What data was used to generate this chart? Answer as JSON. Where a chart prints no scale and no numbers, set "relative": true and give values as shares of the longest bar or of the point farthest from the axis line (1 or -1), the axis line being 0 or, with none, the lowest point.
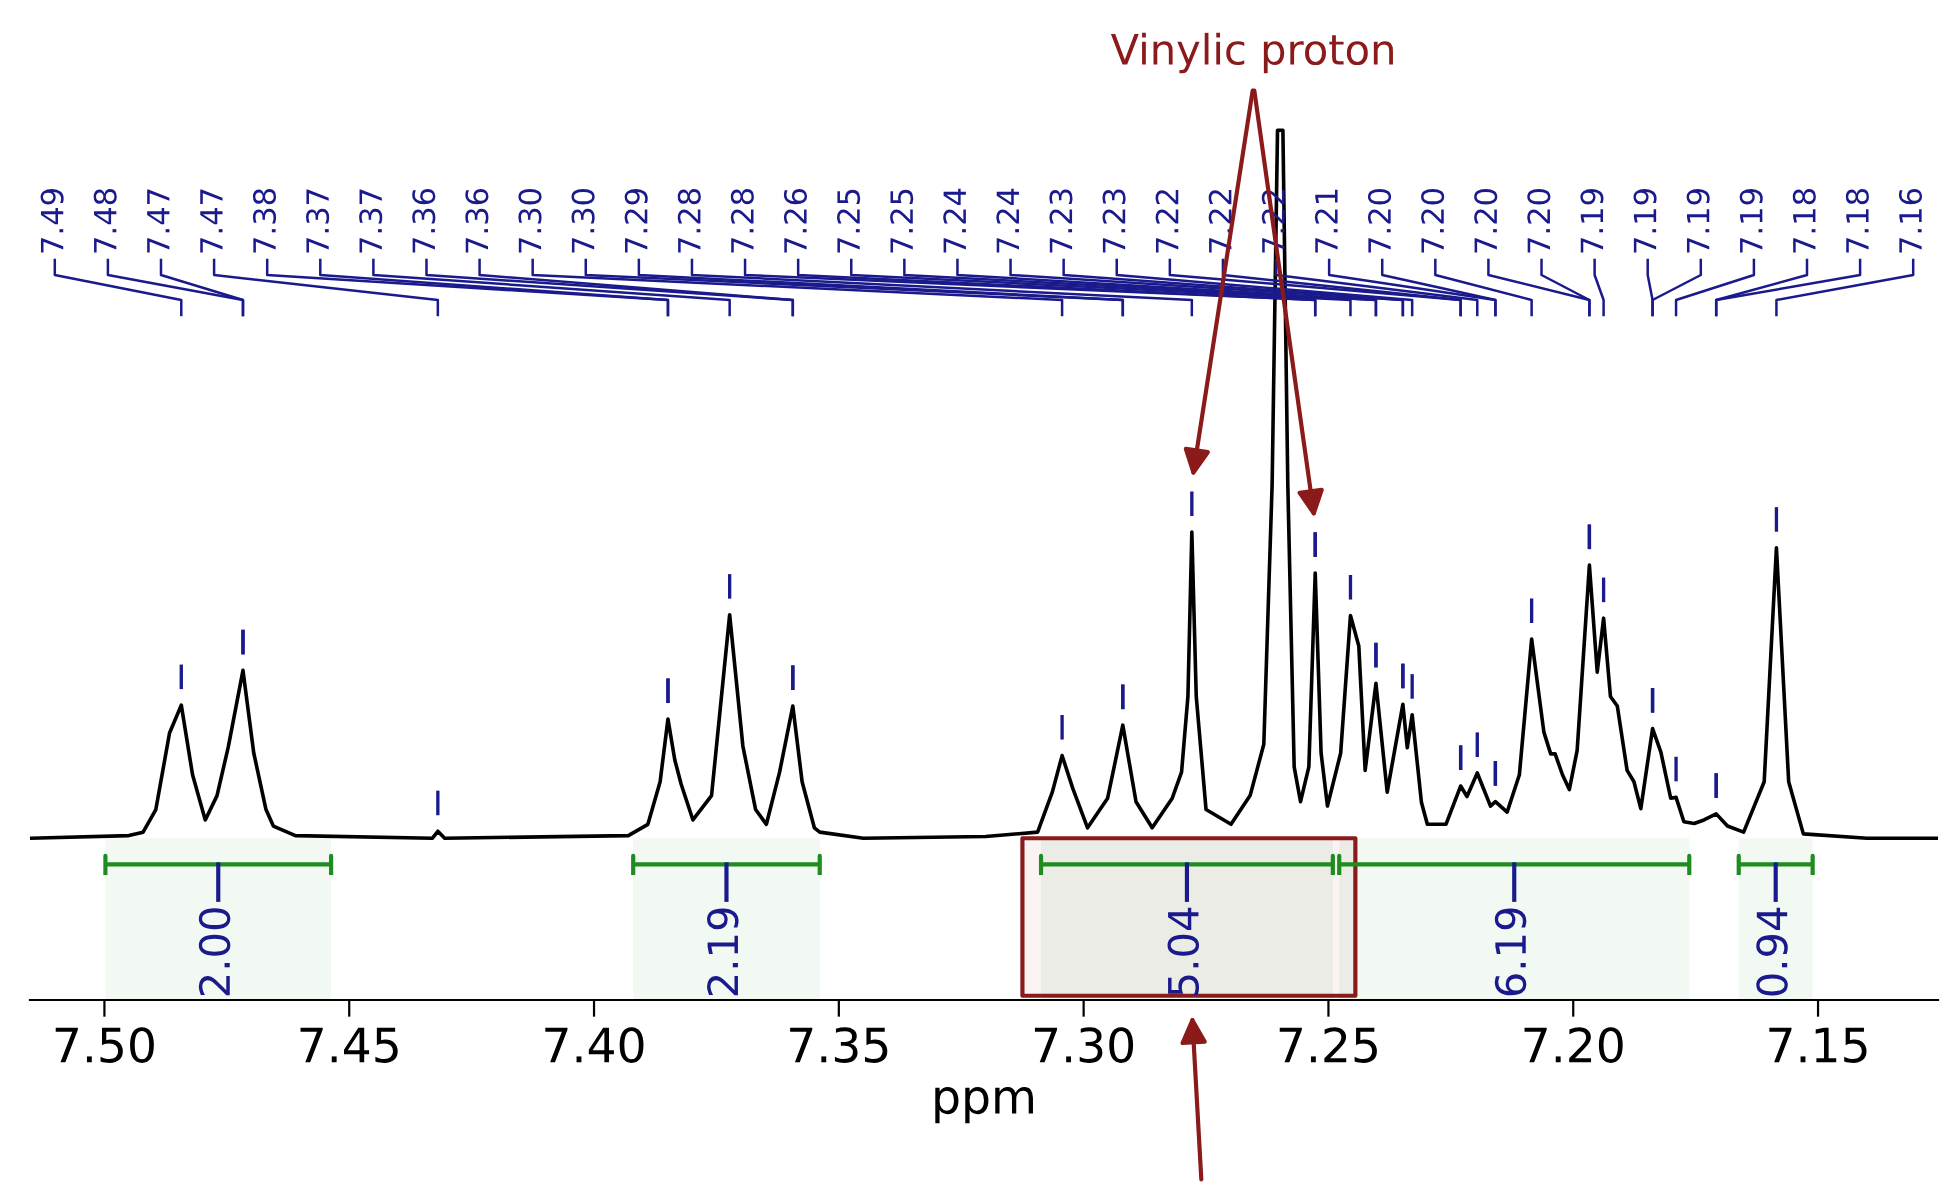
{
  "chart_data": {
    "type": "line",
    "relative": true,
    "xlabel": "ppm",
    "xlim": [
      7.5152,
      7.1255
    ],
    "xticks": [
      {
        "value": 7.5,
        "label": "7.50"
      },
      {
        "value": 7.45,
        "label": "7.45"
      },
      {
        "value": 7.4,
        "label": "7.40"
      },
      {
        "value": 7.35,
        "label": "7.35"
      },
      {
        "value": 7.3,
        "label": "7.30"
      },
      {
        "value": 7.25,
        "label": "7.25"
      },
      {
        "value": 7.2,
        "label": "7.20"
      },
      {
        "value": 7.15,
        "label": "7.15"
      }
    ],
    "tick_labels": "x",
    "grid": false,
    "legend": false,
    "marker": "none",
    "line_style": "solid",
    "series": [
      {
        "color": "#000000",
        "x": [
          7.515,
          7.495,
          7.4921,
          7.4895,
          7.4867,
          7.4843,
          7.482,
          7.4794,
          7.477,
          7.4747,
          7.4717,
          7.4695,
          7.467,
          7.4655,
          7.461,
          7.433,
          7.4319,
          7.4305,
          7.393,
          7.389,
          7.3865,
          7.3849,
          7.3835,
          7.3822,
          7.3798,
          7.376,
          7.3723,
          7.3696,
          7.367,
          7.3648,
          7.3621,
          7.3594,
          7.3575,
          7.355,
          7.3539,
          7.345,
          7.32,
          7.3094,
          7.3064,
          7.3044,
          7.3022,
          7.2992,
          7.2951,
          7.292,
          7.2893,
          7.286,
          7.2819,
          7.28,
          7.2787,
          7.2779,
          7.277,
          7.275,
          7.2699,
          7.266,
          7.2632,
          7.2615,
          7.2604,
          7.2593,
          7.2583,
          7.257,
          7.2557,
          7.254,
          7.2527,
          7.2515,
          7.2502,
          7.2475,
          7.2455,
          7.2438,
          7.2425,
          7.2403,
          7.238,
          7.2348,
          7.2339,
          7.2329,
          7.231,
          7.2298,
          7.226,
          7.223,
          7.2217,
          7.2196,
          7.2169,
          7.2159,
          7.2135,
          7.211,
          7.2085,
          7.206,
          7.2046,
          7.2037,
          7.2022,
          7.2008,
          7.1992,
          7.1967,
          7.1951,
          7.1938,
          7.1924,
          7.191,
          7.189,
          7.1876,
          7.1862,
          7.1838,
          7.1821,
          7.1801,
          7.179,
          7.1774,
          7.1753,
          7.1733,
          7.1708,
          7.1685,
          7.1652,
          7.161,
          7.1585,
          7.156,
          7.153,
          7.14,
          7.1255
        ],
        "values": [
          0.186,
          0.189,
          0.193,
          0.219,
          0.307,
          0.339,
          0.259,
          0.207,
          0.235,
          0.291,
          0.379,
          0.284,
          0.219,
          0.2,
          0.189,
          0.186,
          0.194,
          0.186,
          0.189,
          0.202,
          0.251,
          0.323,
          0.276,
          0.248,
          0.207,
          0.235,
          0.443,
          0.292,
          0.219,
          0.202,
          0.262,
          0.338,
          0.251,
          0.198,
          0.193,
          0.186,
          0.188,
          0.193,
          0.239,
          0.281,
          0.243,
          0.198,
          0.232,
          0.316,
          0.228,
          0.198,
          0.232,
          0.262,
          0.349,
          0.538,
          0.349,
          0.219,
          0.202,
          0.235,
          0.294,
          0.593,
          1.0,
          1.0,
          0.593,
          0.268,
          0.228,
          0.268,
          0.491,
          0.284,
          0.223,
          0.284,
          0.442,
          0.407,
          0.264,
          0.364,
          0.239,
          0.34,
          0.29,
          0.328,
          0.227,
          0.202,
          0.202,
          0.246,
          0.234,
          0.261,
          0.223,
          0.228,
          0.216,
          0.259,
          0.415,
          0.308,
          0.283,
          0.283,
          0.259,
          0.242,
          0.287,
          0.5,
          0.377,
          0.439,
          0.349,
          0.338,
          0.264,
          0.251,
          0.22,
          0.312,
          0.285,
          0.232,
          0.233,
          0.205,
          0.203,
          0.207,
          0.214,
          0.2,
          0.193,
          0.251,
          0.52,
          0.251,
          0.191,
          0.186,
          0.186
        ]
      }
    ],
    "bands": [
      {
        "axis": "x",
        "from": 7.4998,
        "to": 7.4537,
        "label": "2.00",
        "color": "#1e8c1e"
      },
      {
        "axis": "x",
        "from": 7.392,
        "to": 7.3539,
        "label": "2.19",
        "color": "#1e8c1e"
      },
      {
        "axis": "x",
        "from": 7.3087,
        "to": 7.2491,
        "label": "5.04",
        "color": "#1e8c1e"
      },
      {
        "axis": "x",
        "from": 7.2478,
        "to": 7.1763,
        "label": "6.19",
        "color": "#1e8c1e"
      },
      {
        "axis": "x",
        "from": 7.1662,
        "to": 7.1511,
        "label": "0.94",
        "color": "#1e8c1e"
      },
      {
        "axis": "x",
        "from": 7.3125,
        "to": 7.2445,
        "color": "#8b1a1a"
      }
    ],
    "annotations": [
      "Vinylic proton",
      "7.49",
      "7.48",
      "7.47",
      "7.47",
      "7.38",
      "7.37",
      "7.37",
      "7.36",
      "7.36",
      "7.30",
      "7.30",
      "7.29",
      "7.28",
      "7.28",
      "7.26",
      "7.25",
      "7.25",
      "7.24",
      "7.24",
      "7.23",
      "7.23",
      "7.22",
      "7.22",
      "7.22",
      "7.21",
      "7.20",
      "7.20",
      "7.20",
      "7.20",
      "7.19",
      "7.19",
      "7.19",
      "7.19",
      "7.18",
      "7.18",
      "7.16"
    ]
  }
}
